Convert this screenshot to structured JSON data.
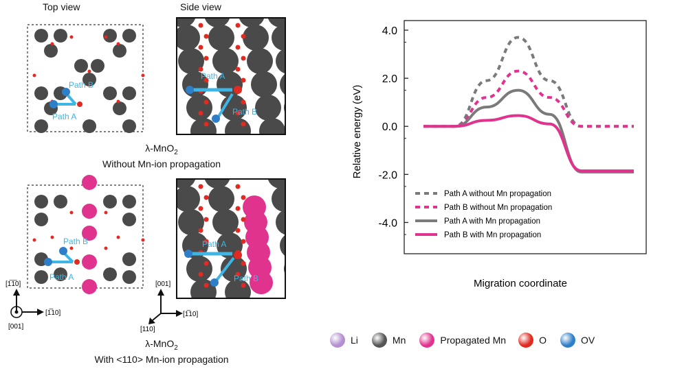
{
  "top_row": {
    "top_view_label": "Top view",
    "side_view_label": "Side view",
    "caption_line1": "λ-MnO",
    "caption_sub": "2",
    "caption_line2": "Without Mn-ion propagation"
  },
  "bottom_row": {
    "caption_line1": "λ-MnO",
    "caption_sub": "2",
    "caption_line2": "With <110> Mn-ion propagation"
  },
  "path_labels": {
    "path_a": "Path A",
    "path_b": "Path B"
  },
  "axes_top_view": {
    "up": "[1̅1̅0]",
    "right": "[1̅10]",
    "out": "[001]"
  },
  "axes_side_view": {
    "up": "[001]",
    "right": "[1̅10]",
    "diag": "[110]"
  },
  "chart_data": {
    "type": "line",
    "ylabel": "Relative energy (eV)",
    "xlabel": "Migration coordinate",
    "ylim": [
      -5.3,
      4.4
    ],
    "yticks": [
      4.0,
      2.0,
      0.0,
      -2.0,
      -4.0
    ],
    "ytick_labels": [
      "4.0",
      "2.0",
      "0.0",
      "-2.0",
      "-4.0"
    ],
    "x": [
      0,
      0.15,
      0.3,
      0.45,
      0.6,
      0.75,
      0.9,
      1.0
    ],
    "series": [
      {
        "name": "Path A without Mn propagation",
        "style": "dashed",
        "color": "#7a7a7a",
        "values": [
          0.0,
          0.0,
          1.9,
          3.7,
          1.9,
          0.0,
          0.0,
          0.0
        ]
      },
      {
        "name": "Path B without Mn propagation",
        "style": "dashed",
        "color": "#e0338e",
        "values": [
          0.0,
          0.0,
          1.2,
          2.3,
          1.2,
          0.0,
          0.0,
          0.0
        ]
      },
      {
        "name": "Path A with Mn propagation",
        "style": "solid",
        "color": "#7a7a7a",
        "values": [
          0.0,
          0.0,
          0.8,
          1.5,
          0.5,
          -1.9,
          -1.9,
          -1.9
        ]
      },
      {
        "name": "Path B with Mn propagation",
        "style": "solid",
        "color": "#e0338e",
        "values": [
          0.0,
          0.0,
          0.25,
          0.45,
          0.1,
          -1.85,
          -1.85,
          -1.85
        ]
      }
    ],
    "legend_position": "bottom-left"
  },
  "atom_legend": [
    {
      "label": "Li",
      "color": "#b48fd1"
    },
    {
      "label": "Mn",
      "color": "#555555"
    },
    {
      "label": "Propagated Mn",
      "color": "#e0338e"
    },
    {
      "label": "O",
      "color": "#e02a22"
    },
    {
      "label": "OV",
      "color": "#2f7fc8"
    }
  ]
}
